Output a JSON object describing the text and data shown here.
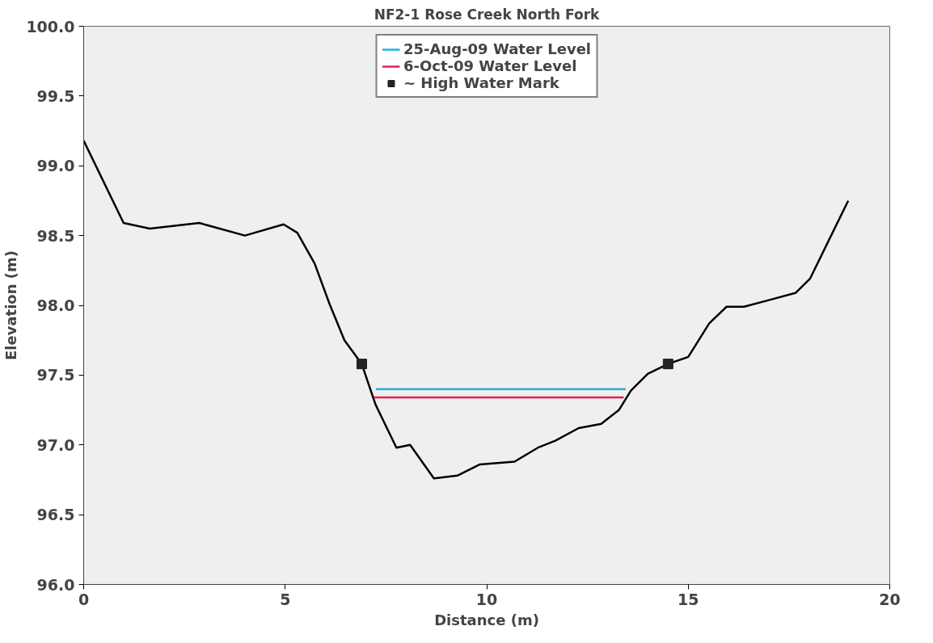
{
  "chart_data": {
    "type": "line",
    "title": "NF2-1 Rose Creek North Fork",
    "xlabel": "Distance (m)",
    "ylabel": "Elevation (m)",
    "xlim": [
      0,
      20
    ],
    "xticks": [
      0,
      5,
      10,
      15,
      20
    ],
    "ylim": [
      96,
      100
    ],
    "yticks": [
      {
        "value": 96,
        "label": "96.0"
      },
      {
        "value": 96.5,
        "label": "96.5"
      },
      {
        "value": 97,
        "label": "97.0"
      },
      {
        "value": 97.5,
        "label": "97.5"
      },
      {
        "value": 98,
        "label": "98.0"
      },
      {
        "value": 98.5,
        "label": "98.5"
      },
      {
        "value": 99,
        "label": "99.0"
      },
      {
        "value": 99.5,
        "label": "99.5"
      },
      {
        "value": 100,
        "label": "100.0"
      }
    ],
    "grid": false,
    "legend": "top",
    "series": [
      {
        "color": "#000000",
        "x": [
          0,
          0.99,
          1.64,
          2.87,
          4.0,
          4.96,
          5.3,
          5.73,
          6.1,
          6.47,
          6.9,
          7.24,
          7.76,
          8.1,
          8.69,
          9.27,
          9.83,
          10.69,
          11.27,
          11.7,
          12.28,
          12.84,
          13.28,
          13.58,
          14.0,
          14.5,
          15.0,
          15.52,
          15.95,
          16.38,
          17.03,
          17.67,
          18.02,
          18.97
        ],
        "values": [
          99.18,
          98.59,
          98.55,
          98.59,
          98.5,
          98.58,
          98.52,
          98.3,
          98.01,
          97.75,
          97.58,
          97.29,
          96.98,
          97.0,
          96.76,
          96.78,
          96.86,
          96.88,
          96.98,
          97.03,
          97.12,
          97.15,
          97.25,
          97.39,
          97.51,
          97.58,
          97.63,
          97.87,
          97.99,
          97.99,
          98.04,
          98.09,
          98.19,
          98.75
        ]
      },
      {
        "name": "25-Aug-09 Water Level",
        "color": "#1fb4e0",
        "x": [
          7.25,
          13.45
        ],
        "values": [
          97.4,
          97.4
        ]
      },
      {
        "name": "6-Oct-09 Water Level",
        "color": "#e0205a",
        "x": [
          7.2,
          13.4
        ],
        "values": [
          97.34,
          97.34
        ]
      },
      {
        "type": "scatter",
        "name": "~ High Water Mark",
        "color": "#222222",
        "marker": "square",
        "x": [
          6.9,
          14.5
        ],
        "values": [
          97.58,
          97.58
        ]
      }
    ]
  }
}
